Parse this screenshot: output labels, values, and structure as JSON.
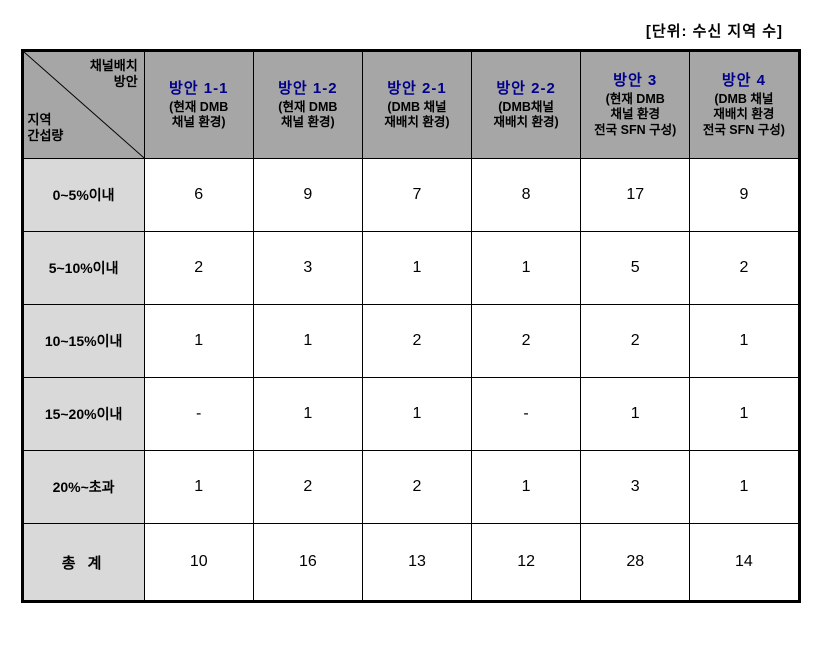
{
  "unit_label": "[단위: 수신 지역 수]",
  "diag": {
    "top1": "채널배치",
    "top2": "방안",
    "bottom1": "지역",
    "bottom2": "간섭량"
  },
  "columns": [
    {
      "plan": "방안 1-1",
      "desc": "(현재 DMB\n채널 환경)"
    },
    {
      "plan": "방안 1-2",
      "desc": "(현재 DMB\n채널 환경)"
    },
    {
      "plan": "방안 2-1",
      "desc": "(DMB 채널\n재배치 환경)"
    },
    {
      "plan": "방안 2-2",
      "desc": "(DMB채널\n재배치  환경)"
    },
    {
      "plan": "방안 3",
      "desc": "(현재 DMB\n채널 환경\n전국 SFN 구성)"
    },
    {
      "plan": "방안 4",
      "desc": "(DMB 채널\n재배치 환경\n전국 SFN 구성)"
    }
  ],
  "rows": [
    {
      "label": "0~5%이내",
      "values": [
        "6",
        "9",
        "7",
        "8",
        "17",
        "9"
      ]
    },
    {
      "label": "5~10%이내",
      "values": [
        "2",
        "3",
        "1",
        "1",
        "5",
        "2"
      ]
    },
    {
      "label": "10~15%이내",
      "values": [
        "1",
        "1",
        "2",
        "2",
        "2",
        "1"
      ]
    },
    {
      "label": "15~20%이내",
      "values": [
        "-",
        "1",
        "1",
        "-",
        "1",
        "1"
      ]
    },
    {
      "label": "20%~초과",
      "values": [
        "1",
        "2",
        "2",
        "1",
        "3",
        "1"
      ]
    }
  ],
  "total": {
    "label": "총 계",
    "values": [
      "10",
      "16",
      "13",
      "12",
      "28",
      "14"
    ]
  }
}
